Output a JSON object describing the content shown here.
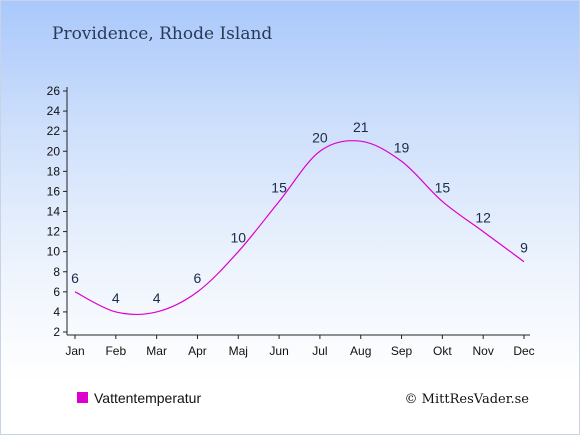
{
  "chart_data": {
    "type": "line",
    "title": "Providence, Rhode Island",
    "categories": [
      "Jan",
      "Feb",
      "Mar",
      "Apr",
      "Maj",
      "Jun",
      "Jul",
      "Aug",
      "Sep",
      "Okt",
      "Nov",
      "Dec"
    ],
    "series": [
      {
        "name": "Vattentemperatur",
        "values": [
          6,
          4,
          4,
          6,
          10,
          15,
          20,
          21,
          19,
          15,
          12,
          9
        ],
        "color": "#dd00cc"
      }
    ],
    "ylim": [
      2,
      26
    ],
    "yticks": [
      2,
      4,
      6,
      8,
      10,
      12,
      14,
      16,
      18,
      20,
      22,
      24,
      26
    ],
    "grid": false,
    "legend": "bottom-left"
  },
  "credit": "© MittResVader.se"
}
